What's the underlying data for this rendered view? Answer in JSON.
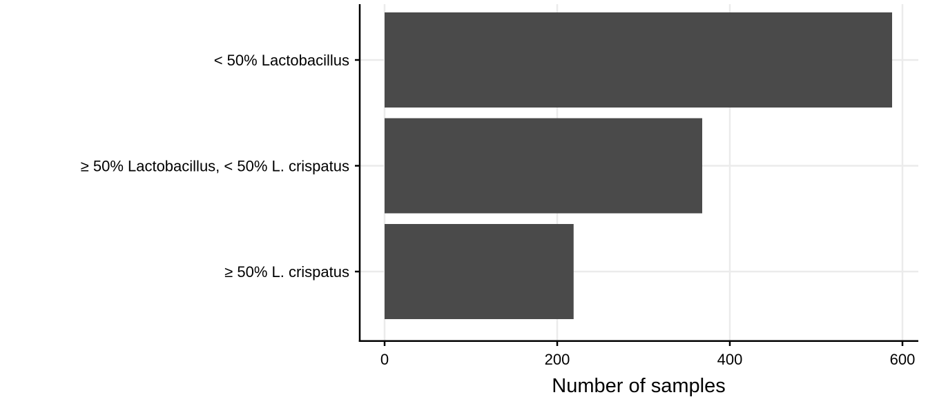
{
  "chart_data": {
    "type": "bar",
    "orientation": "horizontal",
    "categories": [
      "< 50% Lactobacillus",
      "≥ 50% Lactobacillus, < 50% L. crispatus",
      "≥ 50% L. crispatus"
    ],
    "values": [
      588,
      368,
      219
    ],
    "xlabel": "Number of samples",
    "ylabel": "",
    "xlim": [
      -30,
      615
    ],
    "x_ticks": [
      0,
      200,
      400,
      600
    ],
    "x_tick_labels": [
      "0",
      "200",
      "400",
      "600"
    ],
    "grid": true,
    "bar_color": "#4a4a4a",
    "grid_color": "#ebebeb",
    "axis_color": "#000000"
  }
}
